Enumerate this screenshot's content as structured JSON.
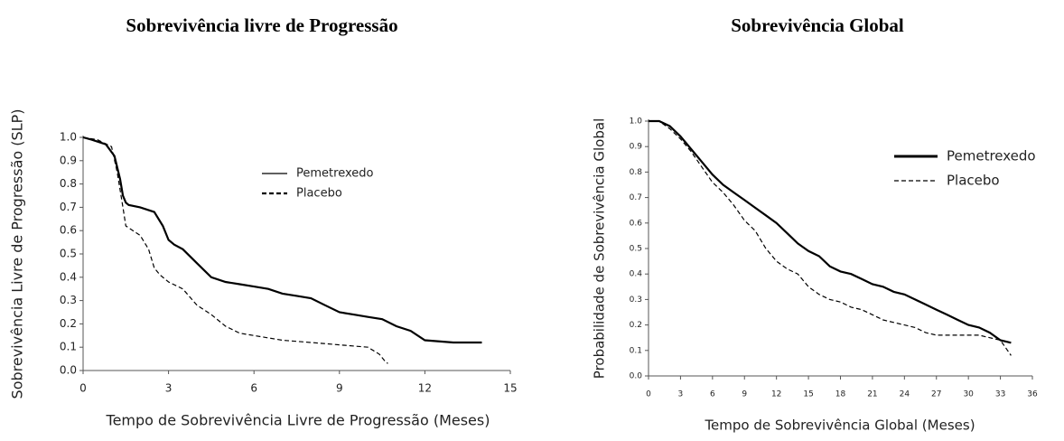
{
  "chart_data": [
    {
      "type": "line",
      "title": "Sobrevivência livre de Progressão",
      "xlabel": "Tempo de Sobrevivência Livre de Progressão (Meses)",
      "ylabel": "Sobrevivência Livre de Progressão (SLP)",
      "xlim": [
        0,
        15
      ],
      "xticks": [
        0,
        3,
        6,
        9,
        12,
        15
      ],
      "ylim": [
        0,
        1
      ],
      "yticks": [
        {
          "value": 0,
          "label": "0.0"
        },
        0.1,
        0.2,
        0.3,
        0.4,
        0.5,
        0.6,
        0.7,
        0.8,
        0.9,
        {
          "value": 1,
          "label": "1.0"
        }
      ],
      "series": [
        {
          "name": "Pemetrexedo",
          "color": "#000000",
          "linestyle": "solid",
          "x": [
            0,
            0.3,
            0.8,
            1.1,
            1.3,
            1.4,
            1.5,
            1.6,
            2.0,
            2.5,
            2.8,
            3.0,
            3.2,
            3.5,
            4.0,
            4.5,
            5.0,
            5.5,
            6.0,
            6.5,
            7.0,
            7.5,
            8.0,
            8.5,
            9.0,
            9.5,
            10.0,
            10.5,
            11.0,
            11.5,
            12.0,
            13.0,
            14.0
          ],
          "values": [
            1.0,
            0.99,
            0.97,
            0.92,
            0.82,
            0.75,
            0.72,
            0.71,
            0.7,
            0.68,
            0.62,
            0.56,
            0.54,
            0.52,
            0.46,
            0.4,
            0.38,
            0.37,
            0.36,
            0.35,
            0.33,
            0.32,
            0.31,
            0.28,
            0.25,
            0.24,
            0.23,
            0.22,
            0.19,
            0.17,
            0.13,
            0.12,
            0.12
          ]
        },
        {
          "name": "Placebo",
          "color": "#000000",
          "linestyle": "dashed",
          "x": [
            0,
            0.5,
            1.0,
            1.2,
            1.4,
            1.5,
            2.0,
            2.3,
            2.5,
            2.7,
            3.0,
            3.5,
            4.0,
            4.5,
            5.0,
            5.5,
            6.0,
            7.0,
            8.0,
            9.0,
            10.0,
            10.4,
            10.6,
            10.7
          ],
          "values": [
            1.0,
            0.99,
            0.96,
            0.85,
            0.7,
            0.62,
            0.58,
            0.52,
            0.44,
            0.41,
            0.38,
            0.35,
            0.28,
            0.24,
            0.19,
            0.16,
            0.15,
            0.13,
            0.12,
            0.11,
            0.1,
            0.07,
            0.04,
            0.03
          ]
        }
      ]
    },
    {
      "type": "line",
      "title": "Sobrevivência Global",
      "xlabel": "Tempo de Sobrevivência Global (Meses)",
      "ylabel": "Probabilidade de Sobrevivência Global",
      "xlim": [
        0,
        36
      ],
      "xticks": [
        0,
        3,
        6,
        9,
        12,
        15,
        18,
        21,
        24,
        27,
        30,
        33,
        36
      ],
      "ylim": [
        0,
        1
      ],
      "yticks": [
        {
          "value": 0,
          "label": "0.0"
        },
        0.1,
        0.2,
        0.3,
        0.4,
        0.5,
        0.6,
        0.7,
        0.8,
        0.9,
        {
          "value": 1,
          "label": "1.0"
        }
      ],
      "series": [
        {
          "name": "Pemetrexedo",
          "color": "#000000",
          "linestyle": "solid",
          "x": [
            0,
            1,
            2,
            3,
            4,
            5,
            6,
            7,
            8,
            9,
            10,
            11,
            12,
            13,
            14,
            15,
            16,
            17,
            18,
            19,
            20,
            21,
            22,
            23,
            24,
            25,
            26,
            27,
            28,
            29,
            30,
            31,
            32,
            33,
            34
          ],
          "values": [
            1.0,
            1.0,
            0.98,
            0.94,
            0.89,
            0.84,
            0.79,
            0.75,
            0.72,
            0.69,
            0.66,
            0.63,
            0.6,
            0.56,
            0.52,
            0.49,
            0.47,
            0.43,
            0.41,
            0.4,
            0.38,
            0.36,
            0.35,
            0.33,
            0.32,
            0.3,
            0.28,
            0.26,
            0.24,
            0.22,
            0.2,
            0.19,
            0.17,
            0.14,
            0.13
          ]
        },
        {
          "name": "Placebo",
          "color": "#000000",
          "linestyle": "dashed",
          "x": [
            0,
            1,
            2,
            3,
            4,
            5,
            6,
            7,
            8,
            9,
            10,
            11,
            12,
            13,
            14,
            15,
            16,
            17,
            18,
            19,
            20,
            21,
            22,
            23,
            24,
            25,
            26,
            27,
            28,
            29,
            30,
            31,
            32,
            33,
            34
          ],
          "values": [
            1.0,
            1.0,
            0.97,
            0.93,
            0.88,
            0.82,
            0.76,
            0.72,
            0.67,
            0.61,
            0.57,
            0.5,
            0.45,
            0.42,
            0.4,
            0.35,
            0.32,
            0.3,
            0.29,
            0.27,
            0.26,
            0.24,
            0.22,
            0.21,
            0.2,
            0.19,
            0.17,
            0.16,
            0.16,
            0.16,
            0.16,
            0.16,
            0.15,
            0.14,
            0.08
          ]
        }
      ]
    }
  ]
}
